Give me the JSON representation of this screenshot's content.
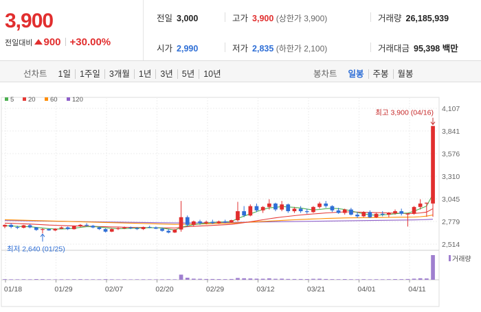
{
  "price": {
    "current": "3,900",
    "change_label": "전일대비",
    "change_amount": "900",
    "change_percent": "+30.00%"
  },
  "stats": {
    "prev_close": {
      "label": "전일",
      "value": "3,000"
    },
    "high": {
      "label": "고가",
      "value": "3,900",
      "sub": "(상한가 3,900)"
    },
    "volume": {
      "label": "거래량",
      "value": "26,185,939"
    },
    "open": {
      "label": "시가",
      "value": "2,990"
    },
    "low": {
      "label": "저가",
      "value": "2,835",
      "sub": "(하한가 2,100)"
    },
    "turnover": {
      "label": "거래대금",
      "value": "95,398",
      "unit": "백만"
    }
  },
  "toolbar": {
    "line_label": "선차트",
    "line_periods": [
      "1일",
      "1주일",
      "3개월",
      "1년",
      "3년",
      "5년",
      "10년"
    ],
    "candle_label": "봉차트",
    "candle_periods": [
      "일봉",
      "주봉",
      "월봉"
    ],
    "candle_selected": "일봉"
  },
  "colors": {
    "up": "#e12e2e",
    "down": "#2f6fd6",
    "ma5": "#4caf50",
    "ma20": "#e53935",
    "ma60": "#ff8c00",
    "ma120": "#8e5fc9"
  },
  "legend": [
    "5",
    "20",
    "60",
    "120"
  ],
  "chart_data": {
    "type": "candlestick",
    "y_ticks": [
      "4,107",
      "3,841",
      "3,576",
      "3,310",
      "3,045",
      "2,779",
      "2,514"
    ],
    "ylim": [
      2514,
      4107
    ],
    "x_ticks": [
      "01/18",
      "01/29",
      "02/07",
      "02/20",
      "02/29",
      "03/12",
      "03/21",
      "04/01",
      "04/11"
    ],
    "high_note": "최고 3,900 (04/16)",
    "low_note": "최저 2,640 (01/25)",
    "volume_label": "거래량",
    "candles": [
      [
        2720,
        2745,
        2700,
        2740
      ],
      [
        2740,
        2760,
        2700,
        2715
      ],
      [
        2715,
        2730,
        2690,
        2705
      ],
      [
        2705,
        2740,
        2700,
        2735
      ],
      [
        2735,
        2750,
        2700,
        2710
      ],
      [
        2710,
        2715,
        2670,
        2680
      ],
      [
        2680,
        2700,
        2640,
        2690
      ],
      [
        2690,
        2700,
        2670,
        2675
      ],
      [
        2675,
        2700,
        2665,
        2695
      ],
      [
        2695,
        2720,
        2690,
        2710
      ],
      [
        2710,
        2720,
        2680,
        2690
      ],
      [
        2690,
        2730,
        2685,
        2725
      ],
      [
        2725,
        2750,
        2710,
        2740
      ],
      [
        2740,
        2760,
        2720,
        2730
      ],
      [
        2730,
        2740,
        2700,
        2710
      ],
      [
        2710,
        2720,
        2680,
        2690
      ],
      [
        2690,
        2700,
        2650,
        2660
      ],
      [
        2660,
        2700,
        2655,
        2690
      ],
      [
        2690,
        2710,
        2680,
        2700
      ],
      [
        2700,
        2720,
        2690,
        2710
      ],
      [
        2710,
        2720,
        2690,
        2700
      ],
      [
        2700,
        2715,
        2680,
        2690
      ],
      [
        2690,
        2720,
        2680,
        2715
      ],
      [
        2715,
        2730,
        2700,
        2710
      ],
      [
        2710,
        2720,
        2690,
        2695
      ],
      [
        2695,
        2710,
        2660,
        2670
      ],
      [
        2670,
        2690,
        2640,
        2650
      ],
      [
        2650,
        2690,
        2645,
        2685
      ],
      [
        2685,
        3020,
        2660,
        2830
      ],
      [
        2830,
        2850,
        2720,
        2740
      ],
      [
        2740,
        2790,
        2720,
        2780
      ],
      [
        2780,
        2800,
        2740,
        2760
      ],
      [
        2760,
        2790,
        2745,
        2775
      ],
      [
        2775,
        2800,
        2750,
        2760
      ],
      [
        2760,
        2790,
        2750,
        2780
      ],
      [
        2780,
        2800,
        2760,
        2770
      ],
      [
        2770,
        2800,
        2765,
        2795
      ],
      [
        2795,
        3010,
        2780,
        2900
      ],
      [
        2900,
        2960,
        2830,
        2850
      ],
      [
        2850,
        2980,
        2840,
        2960
      ],
      [
        2960,
        2990,
        2890,
        2910
      ],
      [
        2910,
        2960,
        2880,
        2950
      ],
      [
        2950,
        3040,
        2920,
        2990
      ],
      [
        2990,
        3000,
        2900,
        2920
      ],
      [
        2920,
        3020,
        2900,
        2980
      ],
      [
        2980,
        2990,
        2880,
        2900
      ],
      [
        2900,
        2950,
        2880,
        2930
      ],
      [
        2930,
        2960,
        2880,
        2900
      ],
      [
        2900,
        2930,
        2870,
        2890
      ],
      [
        2890,
        2960,
        2880,
        2950
      ],
      [
        2950,
        3010,
        2930,
        2990
      ],
      [
        2990,
        3020,
        2940,
        2960
      ],
      [
        2960,
        2970,
        2890,
        2910
      ],
      [
        2910,
        2940,
        2870,
        2880
      ],
      [
        2880,
        2930,
        2860,
        2920
      ],
      [
        2920,
        2940,
        2850,
        2860
      ],
      [
        2860,
        2890,
        2820,
        2840
      ],
      [
        2840,
        2900,
        2830,
        2890
      ],
      [
        2890,
        2910,
        2820,
        2830
      ],
      [
        2830,
        2880,
        2820,
        2870
      ],
      [
        2870,
        2900,
        2840,
        2860
      ],
      [
        2860,
        2890,
        2830,
        2880
      ],
      [
        2880,
        2920,
        2860,
        2900
      ],
      [
        2900,
        2930,
        2850,
        2870
      ],
      [
        2870,
        2880,
        2720,
        2870
      ],
      [
        2870,
        2960,
        2860,
        2950
      ],
      [
        2950,
        3040,
        2920,
        2990
      ],
      [
        2990,
        3000,
        2835,
        3000
      ],
      [
        2990,
        3900,
        2835,
        3900
      ]
    ],
    "ma5": [
      2730,
      2728,
      2722,
      2720,
      2718,
      2710,
      2702,
      2696,
      2692,
      2692,
      2694,
      2700,
      2710,
      2718,
      2720,
      2716,
      2706,
      2700,
      2696,
      2696,
      2700,
      2702,
      2704,
      2706,
      2706,
      2702,
      2690,
      2680,
      2710,
      2730,
      2742,
      2752,
      2760,
      2770,
      2772,
      2775,
      2780,
      2815,
      2842,
      2870,
      2895,
      2920,
      2940,
      2945,
      2955,
      2950,
      2945,
      2938,
      2925,
      2915,
      2920,
      2930,
      2935,
      2930,
      2920,
      2905,
      2885,
      2870,
      2858,
      2852,
      2856,
      2862,
      2870,
      2878,
      2878,
      2900,
      2930,
      2960,
      3100
    ],
    "ma20": [
      2760,
      2758,
      2755,
      2752,
      2750,
      2746,
      2742,
      2738,
      2735,
      2732,
      2730,
      2728,
      2726,
      2724,
      2722,
      2720,
      2718,
      2716,
      2714,
      2712,
      2710,
      2709,
      2708,
      2707,
      2706,
      2705,
      2704,
      2703,
      2712,
      2718,
      2722,
      2726,
      2730,
      2734,
      2738,
      2742,
      2746,
      2756,
      2766,
      2776,
      2788,
      2800,
      2812,
      2822,
      2832,
      2840,
      2848,
      2856,
      2862,
      2868,
      2874,
      2880,
      2884,
      2888,
      2892,
      2892,
      2890,
      2888,
      2886,
      2884,
      2882,
      2880,
      2878,
      2876,
      2872,
      2874,
      2880,
      2890,
      2930
    ],
    "ma60": [
      2800,
      2798,
      2796,
      2794,
      2792,
      2790,
      2788,
      2786,
      2784,
      2782,
      2780,
      2778,
      2776,
      2774,
      2772,
      2770,
      2768,
      2766,
      2764,
      2762,
      2760,
      2758,
      2756,
      2754,
      2752,
      2750,
      2748,
      2746,
      2747,
      2748,
      2749,
      2750,
      2752,
      2754,
      2756,
      2758,
      2760,
      2764,
      2768,
      2772,
      2776,
      2780,
      2784,
      2788,
      2792,
      2796,
      2800,
      2803,
      2806,
      2809,
      2812,
      2815,
      2817,
      2819,
      2821,
      2822,
      2823,
      2824,
      2825,
      2826,
      2827,
      2828,
      2829,
      2830,
      2830,
      2832,
      2836,
      2842,
      2856
    ],
    "ma120": [
      2790,
      2789,
      2788,
      2787,
      2786,
      2785,
      2784,
      2783,
      2782,
      2781,
      2780,
      2779,
      2778,
      2777,
      2776,
      2775,
      2774,
      2773,
      2772,
      2771,
      2770,
      2769,
      2768,
      2767,
      2766,
      2765,
      2764,
      2763,
      2763,
      2763,
      2763,
      2764,
      2765,
      2766,
      2767,
      2768,
      2769,
      2770,
      2771,
      2772,
      2773,
      2774,
      2775,
      2776,
      2777,
      2778,
      2779,
      2780,
      2781,
      2782,
      2783,
      2784,
      2785,
      2786,
      2787,
      2788,
      2789,
      2790,
      2791,
      2792,
      2793,
      2794,
      2795,
      2796,
      2797,
      2798,
      2800,
      2802,
      2806
    ],
    "volume": [
      12,
      10,
      9,
      11,
      10,
      13,
      12,
      9,
      8,
      10,
      9,
      11,
      12,
      10,
      9,
      10,
      12,
      9,
      8,
      9,
      8,
      9,
      10,
      9,
      8,
      10,
      11,
      9,
      100,
      40,
      22,
      18,
      15,
      14,
      13,
      12,
      14,
      35,
      30,
      26,
      22,
      20,
      28,
      18,
      22,
      16,
      15,
      14,
      13,
      18,
      20,
      15,
      12,
      11,
      13,
      11,
      10,
      12,
      10,
      11,
      10,
      11,
      13,
      12,
      14,
      22,
      30,
      26,
      480
    ]
  }
}
